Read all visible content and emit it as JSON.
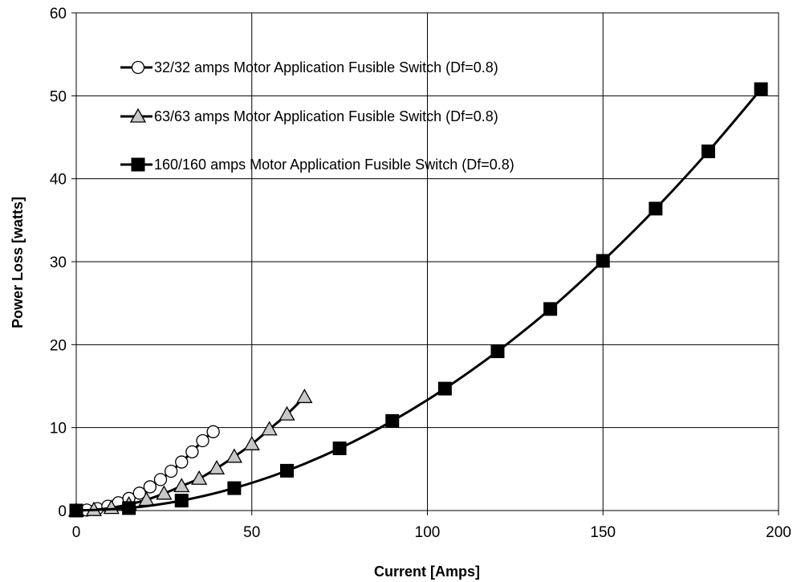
{
  "chart_data": {
    "type": "line",
    "xlabel": "Current [Amps]",
    "ylabel": "Power Loss [watts]",
    "xlim": [
      0,
      200
    ],
    "ylim": [
      0,
      60
    ],
    "x_ticks": [
      0,
      50,
      100,
      150,
      200
    ],
    "y_ticks": [
      0,
      10,
      20,
      30,
      40,
      50,
      60
    ],
    "grid": true,
    "legend_position": "top-left inside",
    "series": [
      {
        "name": "32/32 amps Motor Application Fusible Switch (Df=0.8)",
        "marker": "circle",
        "marker_fill": "#ffffff",
        "line_color": "#000000",
        "x": [
          0,
          3,
          6,
          9,
          12,
          15,
          18,
          21,
          24,
          27,
          30,
          33,
          36,
          39
        ],
        "y": [
          0,
          0.06,
          0.23,
          0.52,
          0.94,
          1.46,
          2.1,
          2.86,
          3.74,
          4.74,
          5.85,
          7.08,
          8.42,
          9.5
        ]
      },
      {
        "name": "63/63 amps Motor Application Fusible Switch (Df=0.8)",
        "marker": "triangle",
        "marker_fill": "#c8c8c8",
        "line_color": "#000000",
        "x": [
          0,
          5,
          10,
          15,
          20,
          25,
          30,
          35,
          40,
          45,
          50,
          55,
          60,
          65
        ],
        "y": [
          0,
          0.08,
          0.33,
          0.74,
          1.3,
          2.05,
          2.95,
          3.85,
          5.1,
          6.5,
          8.0,
          9.8,
          11.6,
          13.7
        ]
      },
      {
        "name": "160/160 amps Motor Application Fusible Switch (Df=0.8)",
        "marker": "square",
        "marker_fill": "#000000",
        "line_color": "#000000",
        "x": [
          0,
          15,
          30,
          45,
          60,
          75,
          90,
          105,
          120,
          135,
          150,
          165,
          180,
          195
        ],
        "y": [
          0,
          0.3,
          1.2,
          2.7,
          4.8,
          7.5,
          10.8,
          14.7,
          19.2,
          24.3,
          30.1,
          36.4,
          43.3,
          50.8
        ]
      }
    ]
  }
}
